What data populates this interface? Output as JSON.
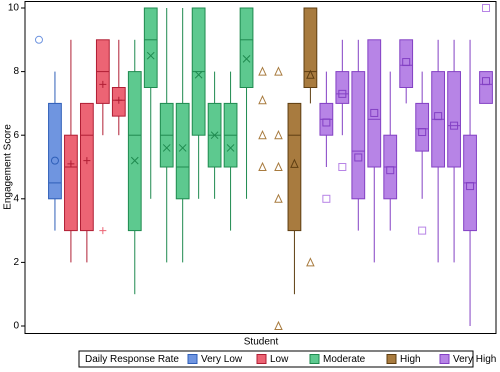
{
  "chart_data": {
    "type": "box",
    "x_label": "Student",
    "y_label": "Engagement Score",
    "ylim": [
      0,
      10
    ],
    "yticks": [
      0,
      2,
      4,
      6,
      8,
      10
    ],
    "legend_title": "Daily Response Rate",
    "groups": [
      {
        "name": "Very Low",
        "color": "#6f95e0",
        "stroke": "#2f5fb8",
        "marker": "circle"
      },
      {
        "name": "Low",
        "color": "#ec6474",
        "stroke": "#b01e34",
        "marker": "plus"
      },
      {
        "name": "Moderate",
        "color": "#5dc98f",
        "stroke": "#1f8a4f",
        "marker": "x"
      },
      {
        "name": "High",
        "color": "#a87b3f",
        "stroke": "#5e3e12",
        "marker": "triangle"
      },
      {
        "name": "Very High",
        "color": "#b784e6",
        "stroke": "#8340c4",
        "marker": "square"
      }
    ],
    "categories": [
      null,
      null,
      null,
      null,
      null,
      null,
      null,
      null,
      null,
      null,
      null,
      null,
      null,
      null,
      null,
      null,
      null,
      null,
      null,
      null,
      null,
      null,
      null,
      null,
      null,
      null,
      null,
      null,
      null
    ],
    "boxes": [
      {
        "group": 0,
        "min": null,
        "q1": null,
        "median": null,
        "q3": null,
        "max": null,
        "mean": null,
        "outliers": [
          9
        ]
      },
      {
        "group": 0,
        "min": 3,
        "q1": 4,
        "median": 4.5,
        "q3": 7,
        "max": 8,
        "mean": 5.2,
        "outliers": []
      },
      {
        "group": 1,
        "min": 2,
        "q1": 3,
        "median": 5,
        "q3": 6,
        "max": 9,
        "mean": 5.1,
        "outliers": []
      },
      {
        "group": 1,
        "min": 2,
        "q1": 3,
        "median": 6,
        "q3": 7,
        "max": 7,
        "mean": 5.2,
        "outliers": []
      },
      {
        "group": 1,
        "min": 6,
        "q1": 7,
        "median": 8,
        "q3": 9,
        "max": 9,
        "mean": 7.6,
        "outliers": [
          3
        ]
      },
      {
        "group": 1,
        "min": 6,
        "q1": 6.6,
        "median": 7.1,
        "q3": 7.5,
        "max": 9,
        "mean": 7.1,
        "outliers": []
      },
      {
        "group": 2,
        "min": 1,
        "q1": 3,
        "median": 6,
        "q3": 8,
        "max": 9,
        "mean": 5.2,
        "outliers": []
      },
      {
        "group": 2,
        "min": 4,
        "q1": 7.5,
        "median": 9,
        "q3": 10,
        "max": 10,
        "mean": 8.5,
        "outliers": []
      },
      {
        "group": 2,
        "min": 2,
        "q1": 5,
        "median": 6,
        "q3": 7,
        "max": 10,
        "mean": 5.6,
        "outliers": []
      },
      {
        "group": 2,
        "min": 2,
        "q1": 4,
        "median": 5,
        "q3": 7,
        "max": 10,
        "mean": 5.6,
        "outliers": []
      },
      {
        "group": 2,
        "min": 4,
        "q1": 6,
        "median": 8,
        "q3": 10,
        "max": 10,
        "mean": 7.9,
        "outliers": []
      },
      {
        "group": 2,
        "min": 4,
        "q1": 5,
        "median": 6,
        "q3": 7,
        "max": 8,
        "mean": 6,
        "outliers": []
      },
      {
        "group": 2,
        "min": 3,
        "q1": 5,
        "median": 6,
        "q3": 7,
        "max": 8,
        "mean": 5.6,
        "outliers": []
      },
      {
        "group": 2,
        "min": 4,
        "q1": 7.5,
        "median": 9,
        "q3": 10,
        "max": 10,
        "mean": 8.4,
        "outliers": []
      },
      {
        "group": 3,
        "min": null,
        "q1": null,
        "median": null,
        "q3": null,
        "max": null,
        "mean": null,
        "outliers": [
          8,
          7.1,
          6,
          5
        ]
      },
      {
        "group": 3,
        "min": null,
        "q1": null,
        "median": null,
        "q3": null,
        "max": null,
        "mean": null,
        "outliers": [
          8,
          6,
          5,
          4,
          0
        ]
      },
      {
        "group": 3,
        "min": 1,
        "q1": 3,
        "median": 6,
        "q3": 7,
        "max": 7,
        "mean": 5.1,
        "outliers": []
      },
      {
        "group": 3,
        "min": 7,
        "q1": 7.5,
        "median": 8,
        "q3": 10,
        "max": 10,
        "mean": 7.9,
        "outliers": [
          2
        ]
      },
      {
        "group": 4,
        "min": 5,
        "q1": 6,
        "median": 6.5,
        "q3": 7,
        "max": 8,
        "mean": 6.4,
        "outliers": [
          4
        ]
      },
      {
        "group": 4,
        "min": 6,
        "q1": 7,
        "median": 7.3,
        "q3": 8,
        "max": 9,
        "mean": 7.3,
        "outliers": [
          5
        ]
      },
      {
        "group": 4,
        "min": 3,
        "q1": 4,
        "median": 5.5,
        "q3": 8,
        "max": 9,
        "mean": 5.3,
        "outliers": []
      },
      {
        "group": 4,
        "min": 2,
        "q1": 5,
        "median": 6.5,
        "q3": 9,
        "max": 9,
        "mean": 6.7,
        "outliers": []
      },
      {
        "group": 4,
        "min": 3,
        "q1": 4,
        "median": 5,
        "q3": 6,
        "max": 8,
        "mean": 4.9,
        "outliers": []
      },
      {
        "group": 4,
        "min": 7,
        "q1": 7.5,
        "median": 8.2,
        "q3": 9,
        "max": 9,
        "mean": 8.3,
        "outliers": []
      },
      {
        "group": 4,
        "min": 4,
        "q1": 5.5,
        "median": 6.2,
        "q3": 7,
        "max": 8,
        "mean": 6.1,
        "outliers": [
          3
        ]
      },
      {
        "group": 4,
        "min": 2,
        "q1": 5,
        "median": 6.5,
        "q3": 8,
        "max": 9,
        "mean": 6.6,
        "outliers": []
      },
      {
        "group": 4,
        "min": 2,
        "q1": 5,
        "median": 6.3,
        "q3": 8,
        "max": 9,
        "mean": 6.3,
        "outliers": []
      },
      {
        "group": 4,
        "min": 0,
        "q1": 3,
        "median": 4.5,
        "q3": 6,
        "max": 9,
        "mean": 4.4,
        "outliers": []
      },
      {
        "group": 4,
        "min": 7,
        "q1": 7,
        "median": 7.6,
        "q3": 8,
        "max": 8,
        "mean": 7.7,
        "outliers": [
          10
        ]
      }
    ]
  }
}
